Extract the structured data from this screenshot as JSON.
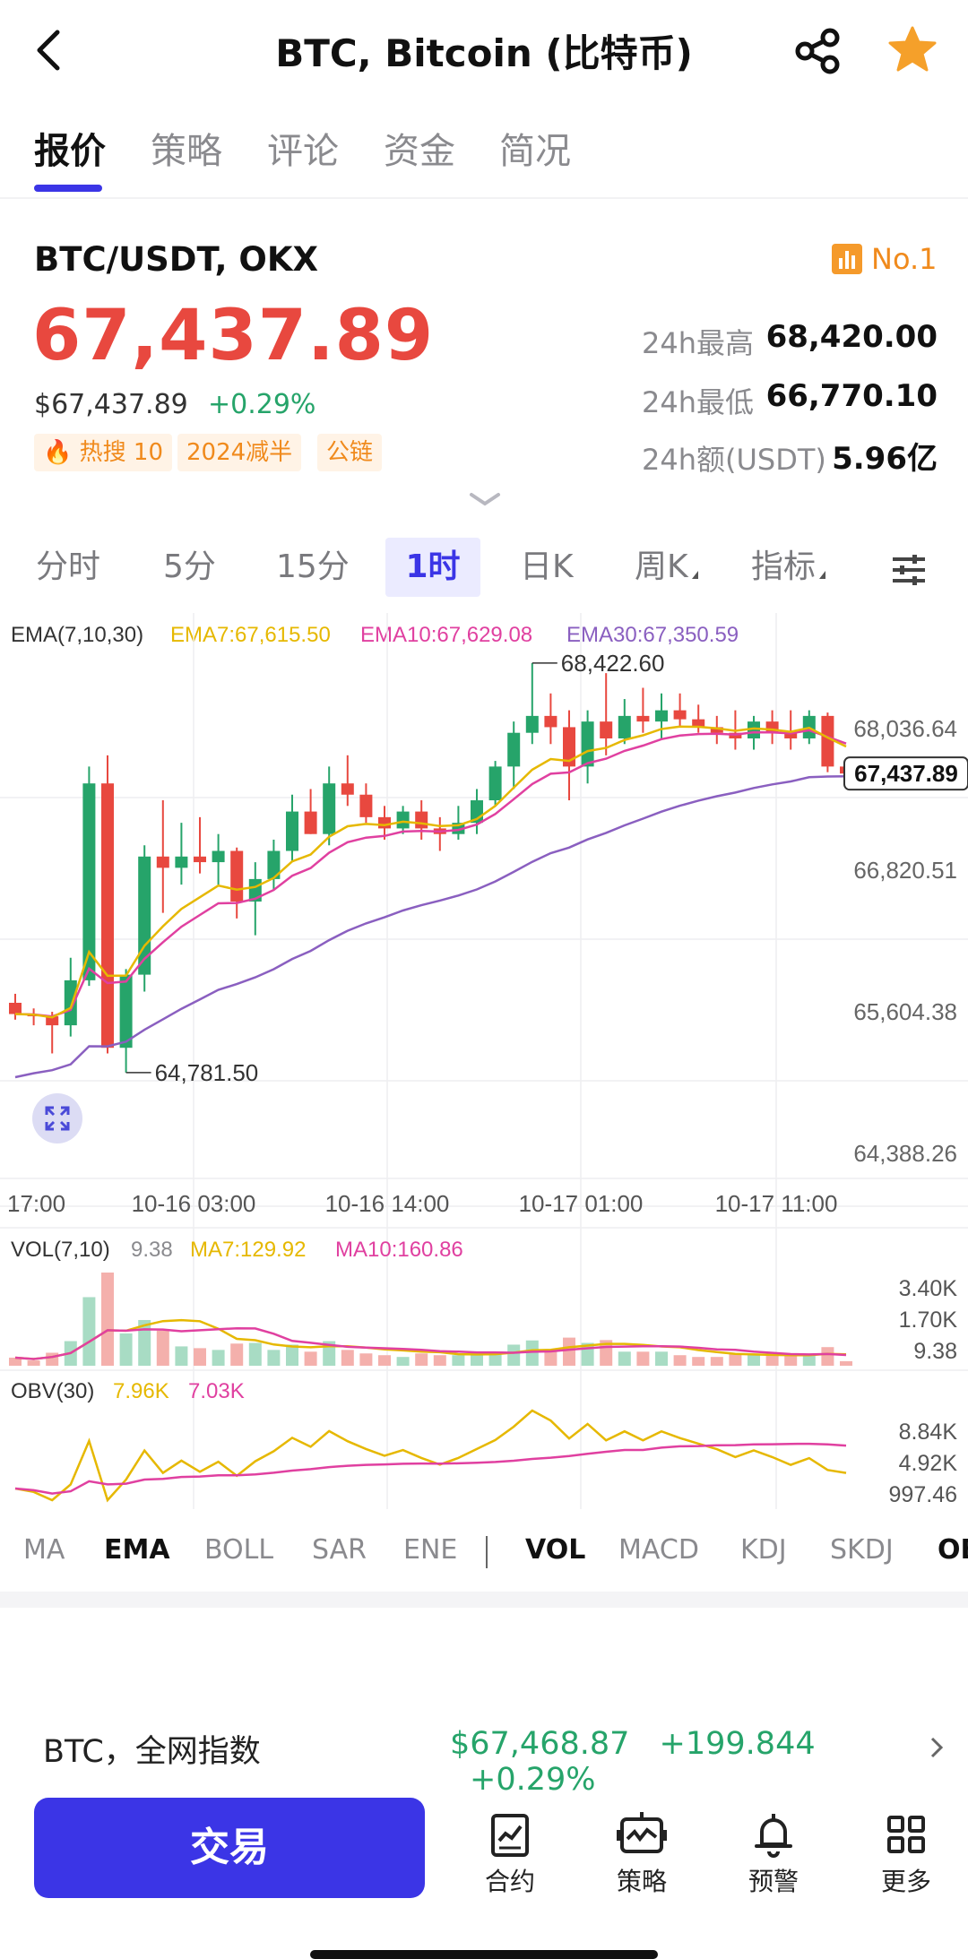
{
  "header": {
    "title": "BTC, Bitcoin (比特币)",
    "back_icon": "chevron-left-icon",
    "share_icon": "share-icon",
    "favorite_icon": "star-icon",
    "favorite_color": "#f5a02a"
  },
  "tabs": [
    {
      "label": "报价",
      "active": true
    },
    {
      "label": "策略"
    },
    {
      "label": "评论"
    },
    {
      "label": "资金"
    },
    {
      "label": "简况"
    }
  ],
  "quote": {
    "pair": "BTC/USDT, OKX",
    "rank": "No.1",
    "price": "67,437.89",
    "usd_price": "$67,437.89",
    "change_pct": "+0.29%",
    "chips": [
      "🔥 热搜 10",
      "2024减半",
      "公链"
    ],
    "stats": [
      {
        "label": "24h最高",
        "value": "68,420.00"
      },
      {
        "label": "24h最低",
        "value": "66,770.10"
      },
      {
        "label": "24h额(USDT)",
        "value": "5.96亿"
      }
    ]
  },
  "intervals": [
    {
      "label": "分时"
    },
    {
      "label": "5分"
    },
    {
      "label": "15分"
    },
    {
      "label": "1时",
      "active": true
    },
    {
      "label": "日K"
    },
    {
      "label": "周K"
    },
    {
      "label": "指标"
    }
  ],
  "colors": {
    "up": "#26a46a",
    "down": "#e8483f",
    "accent": "#3b35e6",
    "ema7": "#e6b800",
    "ema10": "#e040a0",
    "ema30": "#8a5fc0"
  },
  "chart_data": {
    "type": "candlestick",
    "ema_legend": {
      "title": "EMA(7,10,30)",
      "ema7": "EMA7:67,615.50",
      "ema10": "EMA10:67,629.08",
      "ema30": "EMA30:67,350.59"
    },
    "y_ticks": [
      "68,036.64",
      "66,820.51",
      "65,604.38",
      "64,388.26"
    ],
    "ylim": [
      64388.26,
      68036.64
    ],
    "x_ticks": [
      "17:00",
      "10-16 03:00",
      "10-16 14:00",
      "10-17 01:00",
      "10-17 11:00"
    ],
    "high_label": "68,422.60",
    "low_label": "64,781.50",
    "last_price_label": "67,437.89",
    "candles": [
      [
        65400,
        65480,
        65250,
        65300
      ],
      [
        65300,
        65350,
        65200,
        65280
      ],
      [
        65280,
        65320,
        64950,
        65200
      ],
      [
        65200,
        65800,
        65100,
        65600
      ],
      [
        65600,
        67500,
        65550,
        67350
      ],
      [
        67350,
        67600,
        64950,
        65000
      ],
      [
        65000,
        65700,
        64780,
        65650
      ],
      [
        65650,
        66800,
        65500,
        66700
      ],
      [
        66700,
        67200,
        66200,
        66600
      ],
      [
        66600,
        67000,
        66450,
        66700
      ],
      [
        66700,
        67050,
        66550,
        66650
      ],
      [
        66650,
        66900,
        66450,
        66750
      ],
      [
        66750,
        66780,
        66150,
        66300
      ],
      [
        66300,
        66650,
        66000,
        66500
      ],
      [
        66500,
        66850,
        66400,
        66750
      ],
      [
        66750,
        67250,
        66650,
        67100
      ],
      [
        67100,
        67300,
        66900,
        66900
      ],
      [
        66900,
        67500,
        66800,
        67350
      ],
      [
        67350,
        67600,
        67150,
        67250
      ],
      [
        67250,
        67350,
        67000,
        67050
      ],
      [
        67050,
        67150,
        66850,
        66950
      ],
      [
        66950,
        67150,
        66900,
        67100
      ],
      [
        67100,
        67200,
        66850,
        66950
      ],
      [
        66950,
        67050,
        66750,
        66900
      ],
      [
        66900,
        67150,
        66850,
        67000
      ],
      [
        67000,
        67300,
        66900,
        67200
      ],
      [
        67200,
        67550,
        67150,
        67500
      ],
      [
        67500,
        67900,
        67300,
        67800
      ],
      [
        67800,
        68420,
        67700,
        67950
      ],
      [
        67950,
        68150,
        67700,
        67850
      ],
      [
        67850,
        68000,
        67200,
        67500
      ],
      [
        67500,
        68000,
        67350,
        67900
      ],
      [
        67900,
        68330,
        67600,
        67750
      ],
      [
        67750,
        68100,
        67700,
        67950
      ],
      [
        67950,
        68200,
        67800,
        67900
      ],
      [
        67900,
        68150,
        67750,
        68000
      ],
      [
        68000,
        68150,
        67850,
        67920
      ],
      [
        67920,
        68050,
        67800,
        67850
      ],
      [
        67850,
        67950,
        67700,
        67800
      ],
      [
        67800,
        68000,
        67650,
        67750
      ],
      [
        67750,
        67950,
        67650,
        67900
      ],
      [
        67900,
        68000,
        67700,
        67800
      ],
      [
        67800,
        68000,
        67650,
        67750
      ],
      [
        67750,
        68000,
        67700,
        67950
      ],
      [
        67950,
        67980,
        67450,
        67500
      ],
      [
        67500,
        67560,
        67430,
        67437.89
      ]
    ],
    "vol_legend": {
      "title": "VOL(7,10)",
      "last": "9.38",
      "ma7": "MA7:129.92",
      "ma10": "MA10:160.86"
    },
    "vol_ticks": [
      "3.40K",
      "1.70K",
      "9.38"
    ],
    "obv_legend": {
      "title": "OBV(30)",
      "v1": "7.96K",
      "v2": "7.03K"
    },
    "obv_ticks": [
      "8.84K",
      "4.92K",
      "997.46"
    ]
  },
  "indicators": [
    "MA",
    "EMA",
    "BOLL",
    "SAR",
    "ENE",
    "VOL",
    "MACD",
    "KDJ",
    "SKDJ",
    "OBV"
  ],
  "index_row": {
    "name": "BTC，全网指数",
    "price": "$67,468.87",
    "change": "+199.844",
    "pct": "+0.29%"
  },
  "bottom": {
    "trade_label": "交易",
    "items": [
      {
        "label": "合约",
        "icon": "contract-icon"
      },
      {
        "label": "策略",
        "icon": "bot-icon"
      },
      {
        "label": "预警",
        "icon": "bell-icon"
      },
      {
        "label": "更多",
        "icon": "grid-icon"
      }
    ]
  }
}
